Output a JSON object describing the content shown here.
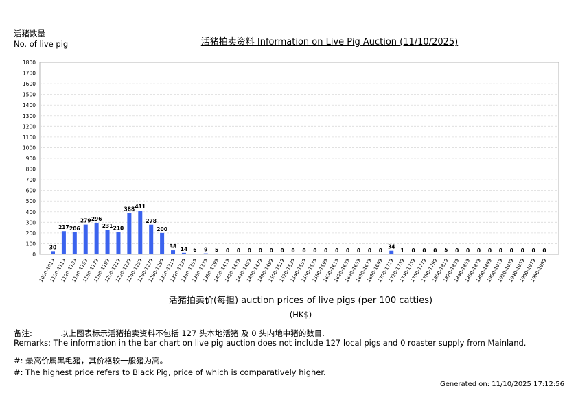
{
  "header": {
    "y_title_zh": "活猪数量",
    "y_title_en": "No. of live pig",
    "chart_title": "活猪拍卖资料 Information on Live Pig Auction (11/10/2025)"
  },
  "axis": {
    "x_title": "活猪拍卖价(每担) auction prices of live pigs (per 100 catties)",
    "unit": "(HK$)"
  },
  "notes": {
    "remark_zh_label": "备注:",
    "remark_zh": "以上图表标示活猪拍卖资料不包括 127 头本地活猪 及 0 头内地中猪的数目.",
    "remark_en": "Remarks: The information in the bar chart on live pig auction does not include 127 local pigs and 0 roaster supply from Mainland.",
    "hash_zh": "#: 最高价属黑毛猪，其价格较一般猪为高。",
    "hash_en": "#: The highest price refers to Black Pig, price of which is comparatively higher.",
    "generated": "Generated on: 11/10/2025 17:12:56"
  },
  "chart_data": {
    "type": "bar",
    "title": "活猪拍卖资料 Information on Live Pig Auction (11/10/2025)",
    "xlabel": "活猪拍卖价(每担) auction prices of live pigs (per 100 catties)",
    "ylabel": "No. of live pig",
    "ylim": [
      0,
      1800
    ],
    "yticks": [
      0,
      100,
      200,
      300,
      400,
      500,
      600,
      700,
      800,
      900,
      1000,
      1100,
      1200,
      1300,
      1400,
      1500,
      1600,
      1700,
      1800
    ],
    "grid": true,
    "bar_color": "#3b63ee",
    "categories": [
      "1000-1019",
      "1100-1119",
      "1120-1139",
      "1140-1159",
      "1160-1179",
      "1180-1199",
      "1200-1219",
      "1220-1239",
      "1240-1259",
      "1260-1279",
      "1280-1299",
      "1300-1319",
      "1320-1339",
      "1340-1359",
      "1360-1379",
      "1380-1399",
      "1400-1419",
      "1420-1439",
      "1440-1459",
      "1460-1479",
      "1480-1499",
      "1500-1519",
      "1520-1539",
      "1540-1559",
      "1560-1579",
      "1580-1599",
      "1600-1619",
      "1620-1639",
      "1640-1659",
      "1660-1679",
      "1680-1699",
      "1700-1719",
      "1720-1739",
      "1740-1759",
      "1760-1779",
      "1780-1799",
      "1800-1819",
      "1820-1839",
      "1840-1859",
      "1860-1879",
      "1880-1899",
      "1900-1919",
      "1920-1939",
      "1940-1959",
      "1960-1979",
      "1980-1999"
    ],
    "values": [
      30,
      217,
      206,
      279,
      296,
      231,
      210,
      388,
      411,
      278,
      200,
      38,
      14,
      6,
      9,
      5,
      0,
      0,
      0,
      0,
      0,
      0,
      0,
      0,
      0,
      0,
      0,
      0,
      0,
      0,
      0,
      34,
      1,
      0,
      0,
      0,
      5,
      0,
      0,
      0,
      0,
      0,
      0,
      0,
      0,
      0
    ]
  }
}
